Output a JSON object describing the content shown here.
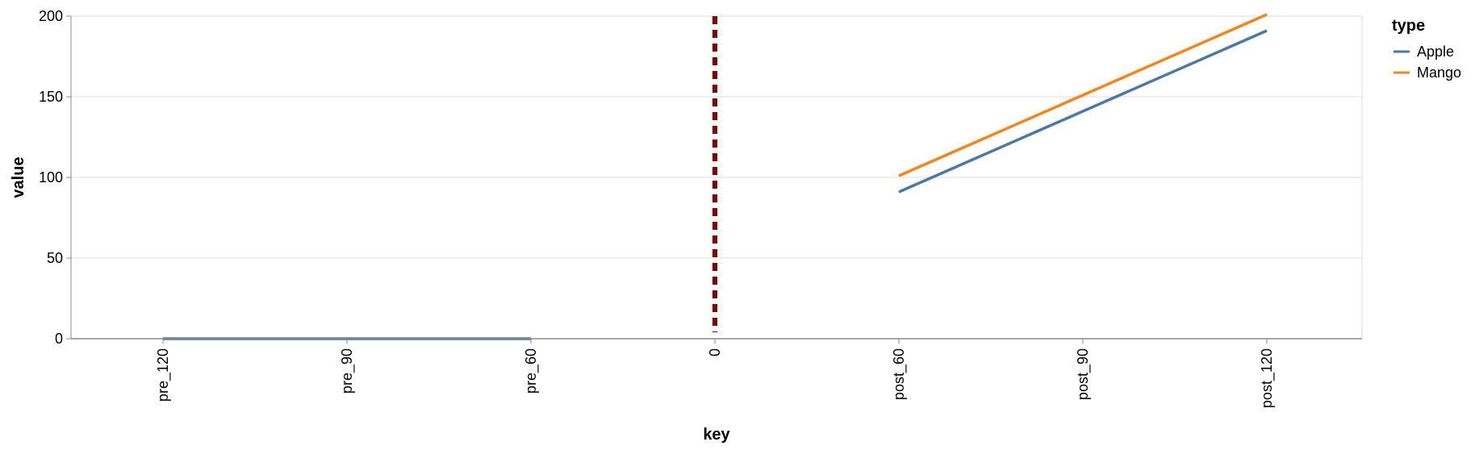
{
  "chart_data": {
    "type": "line",
    "xlabel": "key",
    "ylabel": "value",
    "categories": [
      "pre_120",
      "pre_90",
      "pre_60",
      "0",
      "post_60",
      "post_90",
      "post_120"
    ],
    "ylim": [
      0,
      200
    ],
    "yticks": [
      0,
      50,
      100,
      150,
      200
    ],
    "grid": true,
    "legend": {
      "title": "type",
      "position": "top-right"
    },
    "series": [
      {
        "name": "Apple",
        "color": "#4c78a8",
        "points": [
          {
            "x": "pre_120",
            "y": 0
          },
          {
            "x": "pre_90",
            "y": 0
          },
          {
            "x": "pre_60",
            "y": 0
          },
          {
            "x": "post_60",
            "y": 91
          },
          {
            "x": "post_90",
            "y": 141
          },
          {
            "x": "post_120",
            "y": 191
          }
        ]
      },
      {
        "name": "Mango",
        "color": "#f58518",
        "points": [
          {
            "x": "post_60",
            "y": 101
          },
          {
            "x": "post_90",
            "y": 151
          },
          {
            "x": "post_120",
            "y": 201
          }
        ]
      }
    ],
    "reference_line": {
      "x": "0",
      "color": "#8b0000",
      "style": "dashed"
    }
  }
}
